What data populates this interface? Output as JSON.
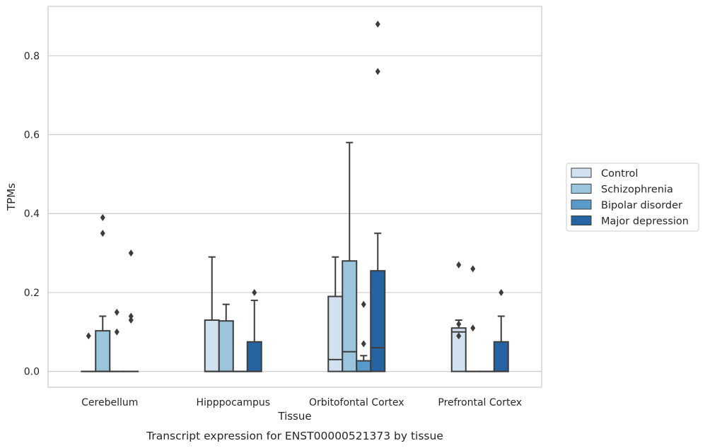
{
  "caption": "Transcript expression for ENST00000521373 by tissue",
  "chart_data": {
    "type": "box",
    "xlabel": "Tissue",
    "ylabel": "TPMs",
    "ylim": [
      -0.04,
      0.925
    ],
    "yticks": [
      0.0,
      0.2,
      0.4,
      0.6,
      0.8
    ],
    "ytick_labels": [
      "0.0",
      "0.2",
      "0.4",
      "0.6",
      "0.8"
    ],
    "grid": "horizontal",
    "legend_position": "right",
    "categories": [
      "Cerebellum",
      "Hipppocampus",
      "Orbitofontal Cortex",
      "Prefrontal Cortex"
    ],
    "series": [
      {
        "name": "Control",
        "color": "#d1e1ef",
        "boxes": [
          {
            "q1": 0,
            "median": 0,
            "q3": 0,
            "whislo": 0,
            "whishi": 0,
            "fliers": [
              0.09
            ]
          },
          {
            "q1": 0,
            "median": 0,
            "q3": 0.13,
            "whislo": 0,
            "whishi": 0.29,
            "fliers": []
          },
          {
            "q1": 0,
            "median": 0.03,
            "q3": 0.19,
            "whislo": 0,
            "whishi": 0.29,
            "fliers": []
          },
          {
            "q1": 0,
            "median": 0.1,
            "q3": 0.11,
            "whislo": 0,
            "whishi": 0.13,
            "fliers": [
              0.09,
              0.12,
              0.27
            ]
          }
        ]
      },
      {
        "name": "Schizophrenia",
        "color": "#9bc4dd",
        "boxes": [
          {
            "q1": 0,
            "median": 0,
            "q3": 0.103,
            "whislo": 0,
            "whishi": 0.14,
            "fliers": [
              0.35,
              0.39
            ]
          },
          {
            "q1": 0,
            "median": 0,
            "q3": 0.128,
            "whislo": 0,
            "whishi": 0.17,
            "fliers": []
          },
          {
            "q1": 0,
            "median": 0.05,
            "q3": 0.28,
            "whislo": 0,
            "whishi": 0.58,
            "fliers": []
          },
          {
            "q1": 0,
            "median": 0,
            "q3": 0,
            "whislo": 0,
            "whishi": 0,
            "fliers": [
              0.11,
              0.26
            ]
          }
        ]
      },
      {
        "name": "Bipolar disorder",
        "color": "#5a9ac8",
        "boxes": [
          {
            "q1": 0,
            "median": 0,
            "q3": 0,
            "whislo": 0,
            "whishi": 0,
            "fliers": [
              0.1,
              0.15
            ]
          },
          {
            "q1": 0,
            "median": 0,
            "q3": 0,
            "whislo": 0,
            "whishi": 0,
            "fliers": []
          },
          {
            "q1": 0,
            "median": 0,
            "q3": 0.027,
            "whislo": 0,
            "whishi": 0.04,
            "fliers": [
              0.07,
              0.17
            ]
          },
          {
            "q1": 0,
            "median": 0,
            "q3": 0,
            "whislo": 0,
            "whishi": 0,
            "fliers": []
          }
        ]
      },
      {
        "name": "Major depression",
        "color": "#2663a2",
        "boxes": [
          {
            "q1": 0,
            "median": 0,
            "q3": 0,
            "whislo": 0,
            "whishi": 0,
            "fliers": [
              0.13,
              0.14,
              0.3
            ]
          },
          {
            "q1": 0,
            "median": 0,
            "q3": 0.075,
            "whislo": 0,
            "whishi": 0.18,
            "fliers": [
              0.2
            ]
          },
          {
            "q1": 0,
            "median": 0.06,
            "q3": 0.255,
            "whislo": 0,
            "whishi": 0.35,
            "fliers": [
              0.76,
              0.88
            ]
          },
          {
            "q1": 0,
            "median": 0,
            "q3": 0.075,
            "whislo": 0,
            "whishi": 0.14,
            "fliers": [
              0.2
            ]
          }
        ]
      }
    ]
  }
}
